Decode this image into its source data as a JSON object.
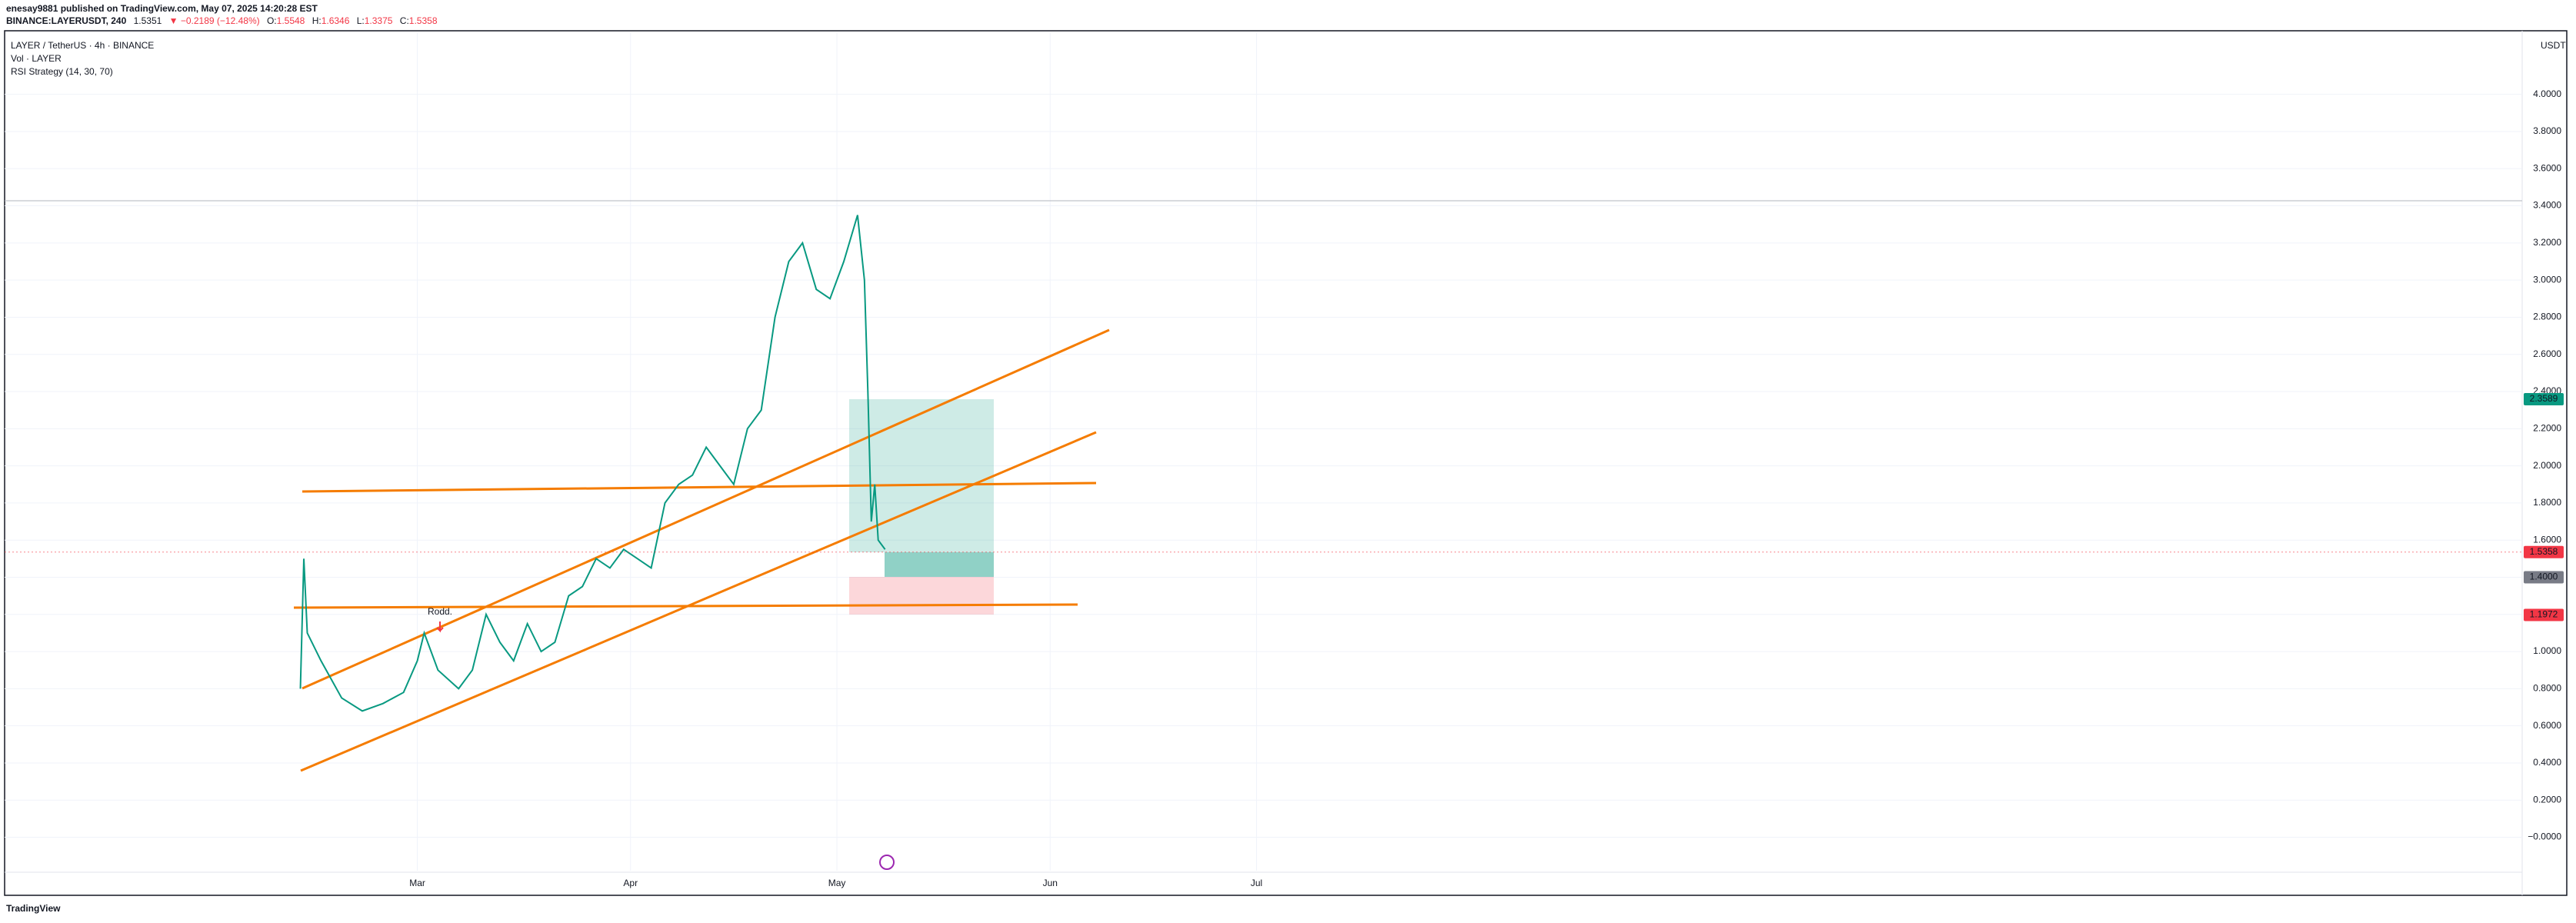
{
  "header": {
    "author_line": "enesay9881 published on TradingView.com, May 07, 2025 14:20:28 EST",
    "symbol": "BINANCE:LAYERUSDT, 240",
    "last": "1.5351",
    "change": "▼ −0.2189 (−12.48%)",
    "ohlc": [
      {
        "label": "O:",
        "value": "1.5548"
      },
      {
        "label": "H:",
        "value": "1.6346"
      },
      {
        "label": "L:",
        "value": "1.3375"
      },
      {
        "label": "C:",
        "value": "1.5358"
      }
    ]
  },
  "legend": [
    "LAYER / TetherUS · 4h · BINANCE",
    "Vol · LAYER",
    "RSI Strategy (14, 30, 70)"
  ],
  "chart_data": {
    "type": "line",
    "currency": "USDT",
    "color": "#089981",
    "x": [
      43,
      43.5,
      44,
      46,
      49,
      52,
      55,
      58,
      60,
      61,
      63,
      66,
      68,
      70,
      72,
      74,
      76,
      78,
      80,
      82,
      84,
      86,
      88,
      90,
      92,
      94,
      96,
      98,
      100,
      102,
      104,
      106,
      108,
      110,
      112,
      114,
      116,
      118,
      120,
      122,
      124,
      125,
      125.5,
      126,
      126.5,
      127,
      128
    ],
    "values": [
      0.8,
      1.5,
      1.1,
      0.95,
      0.75,
      0.68,
      0.72,
      0.78,
      0.95,
      1.1,
      0.9,
      0.8,
      0.9,
      1.2,
      1.05,
      0.95,
      1.15,
      1.0,
      1.05,
      1.3,
      1.35,
      1.5,
      1.45,
      1.55,
      1.5,
      1.45,
      1.8,
      1.9,
      1.95,
      2.1,
      2.0,
      1.9,
      2.2,
      2.3,
      2.8,
      3.1,
      3.2,
      2.95,
      2.9,
      3.1,
      3.35,
      3.0,
      2.4,
      1.7,
      1.9,
      1.6,
      1.55
    ],
    "annotation": "Rodd.",
    "price_labels": [
      {
        "value": 2.3589,
        "label": "2.3589",
        "color": "#089981"
      },
      {
        "value": 1.5358,
        "label": "1.5358",
        "color": "#f23645"
      },
      {
        "value": 1.4,
        "label": "1.4000",
        "color": "#787b86"
      },
      {
        "value": 1.1972,
        "label": "1.1972",
        "color": "#f23645"
      }
    ],
    "xlim": [
      0,
      366
    ],
    "xticks": [
      {
        "value": 60,
        "label": "Mar"
      },
      {
        "value": 91,
        "label": "Apr"
      },
      {
        "value": 121,
        "label": "May"
      },
      {
        "value": 152,
        "label": "Jun"
      },
      {
        "value": 182,
        "label": "Jul"
      }
    ],
    "ylim": [
      -0.18,
      4.33
    ],
    "yticks": [
      {
        "value": 0,
        "label": "−0.0000"
      },
      {
        "value": 0.2,
        "label": "0.2000"
      },
      {
        "value": 0.4,
        "label": "0.4000"
      },
      {
        "value": 0.6,
        "label": "0.6000"
      },
      {
        "value": 0.8,
        "label": "0.8000"
      },
      {
        "value": 1,
        "label": "1.0000"
      },
      {
        "value": 1.2,
        "label": "1.2000"
      },
      {
        "value": 1.4,
        "label": "1.4000"
      },
      {
        "value": 1.6,
        "label": "1.6000"
      },
      {
        "value": 1.8,
        "label": "1.8000"
      },
      {
        "value": 2,
        "label": "2.0000"
      },
      {
        "value": 2.2,
        "label": "2.2000"
      },
      {
        "value": 2.4,
        "label": "2.4000"
      },
      {
        "value": 2.6,
        "label": "2.6000"
      },
      {
        "value": 2.8,
        "label": "2.8000"
      },
      {
        "value": 3,
        "label": "3.0000"
      },
      {
        "value": 3.2,
        "label": "3.2000"
      },
      {
        "value": 3.4,
        "label": "3.4000"
      },
      {
        "value": 3.6,
        "label": "3.6000"
      },
      {
        "value": 3.8,
        "label": "3.8000"
      },
      {
        "value": 4,
        "label": "4.0000"
      }
    ],
    "grid": true
  },
  "footer": {
    "brand": "TradingView"
  }
}
